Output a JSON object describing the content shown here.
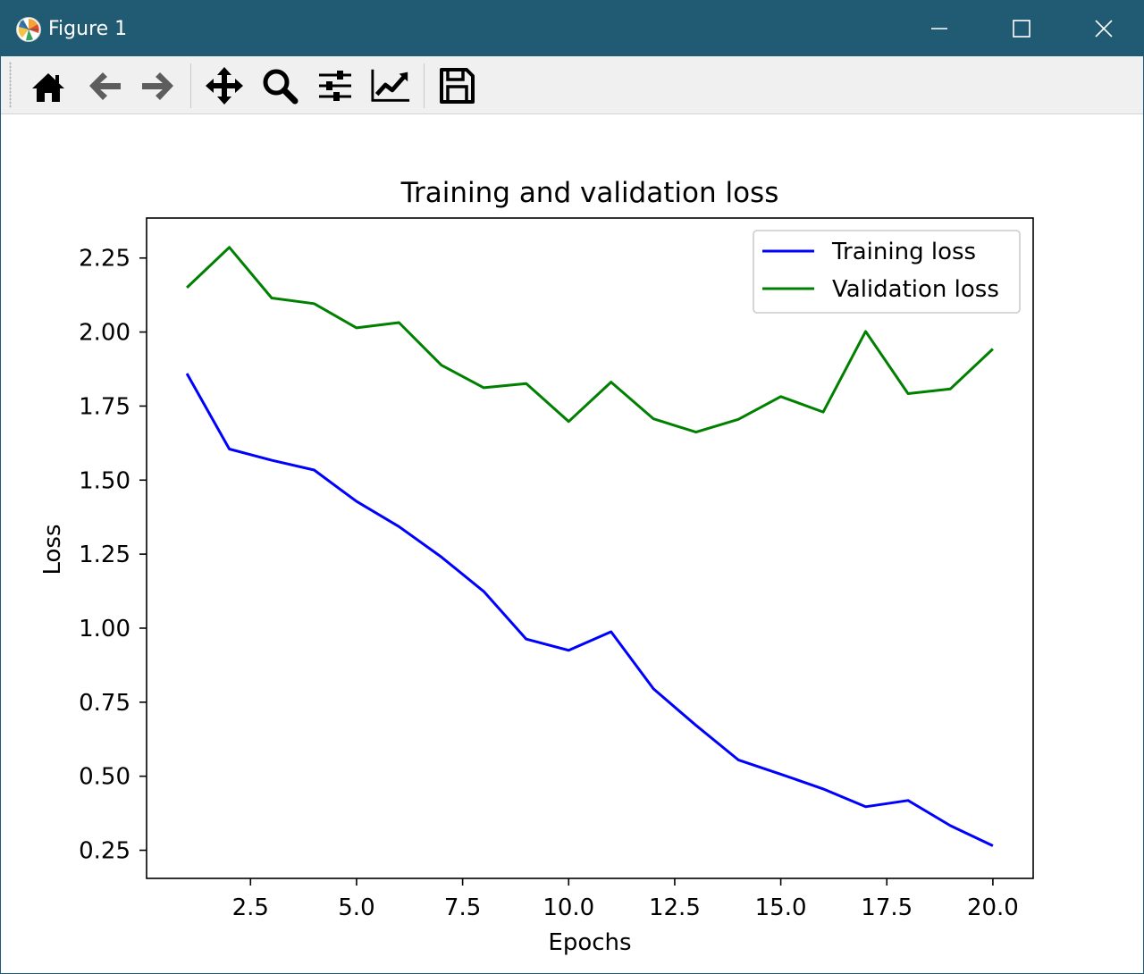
{
  "window": {
    "title": "Figure 1",
    "icon": "matplotlib-logo-icon",
    "controls": [
      "minimize-icon",
      "maximize-icon",
      "close-icon"
    ]
  },
  "toolbar": {
    "buttons": [
      "home-icon",
      "back-arrow-icon",
      "forward-arrow-icon",
      "pan-icon",
      "zoom-icon",
      "configure-subplots-icon",
      "edit-axis-icon",
      "save-icon"
    ]
  },
  "colors": {
    "titlebar": "#215a73",
    "training": "#0000ff",
    "validation": "#008000"
  },
  "chart_data": {
    "type": "line",
    "title": "Training and validation loss",
    "xlabel": "Epochs",
    "ylabel": "Loss",
    "xlim": [
      0.05,
      20.95
    ],
    "ylim": [
      0.155,
      2.385
    ],
    "xticks": [
      2.5,
      5.0,
      7.5,
      10.0,
      12.5,
      15.0,
      17.5,
      20.0
    ],
    "xtick_labels": [
      "2.5",
      "5.0",
      "7.5",
      "10.0",
      "12.5",
      "15.0",
      "17.5",
      "20.0"
    ],
    "yticks": [
      0.25,
      0.5,
      0.75,
      1.0,
      1.25,
      1.5,
      1.75,
      2.0,
      2.25
    ],
    "ytick_labels": [
      "0.25",
      "0.50",
      "0.75",
      "1.00",
      "1.25",
      "1.50",
      "1.75",
      "2.00",
      "2.25"
    ],
    "legend_position": "top-right",
    "grid": false,
    "x": [
      1,
      2,
      3,
      4,
      5,
      6,
      7,
      8,
      9,
      10,
      11,
      12,
      13,
      14,
      15,
      16,
      17,
      18,
      19,
      20
    ],
    "series": [
      {
        "name": "Training loss",
        "color": "#0000ff",
        "values": [
          1.86,
          1.605,
          1.567,
          1.534,
          1.428,
          1.343,
          1.24,
          1.124,
          0.963,
          0.925,
          0.988,
          0.795,
          0.672,
          0.555,
          0.507,
          0.457,
          0.397,
          0.418,
          0.333,
          0.265
        ]
      },
      {
        "name": "Validation loss",
        "color": "#008000",
        "values": [
          2.15,
          2.286,
          2.115,
          2.096,
          2.014,
          2.032,
          1.888,
          1.812,
          1.826,
          1.698,
          1.831,
          1.707,
          1.662,
          1.705,
          1.782,
          1.73,
          2.002,
          1.792,
          1.808,
          1.943
        ]
      }
    ]
  }
}
